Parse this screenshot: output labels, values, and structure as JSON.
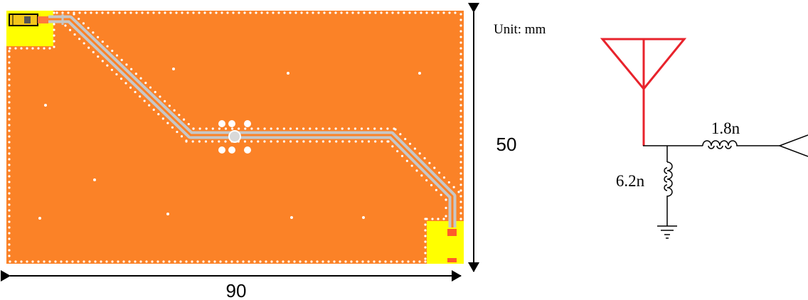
{
  "dimensions": {
    "width_label": "90",
    "height_label": "50",
    "unit_label": "Unit: mm"
  },
  "circuit": {
    "series_inductor_label": "1.8n",
    "shunt_inductor_label": "6.2n"
  },
  "colors": {
    "ground_plane": "#fb8227",
    "feed_pad": "#ffff00",
    "trace": "#c0c0c0",
    "via": "#ffffff",
    "antenna_symbol": "#e8232c",
    "schematic_wire": "#000000"
  }
}
